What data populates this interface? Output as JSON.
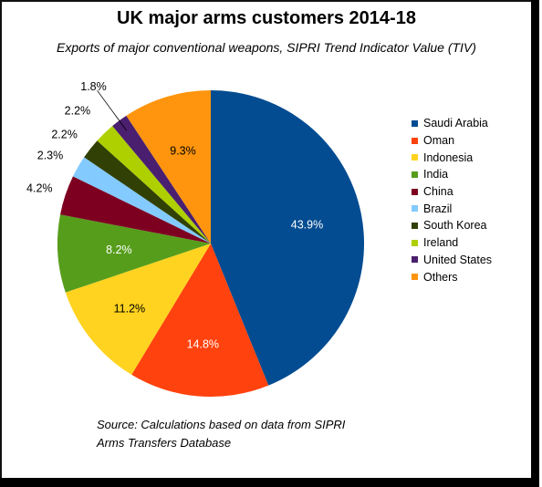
{
  "title": "UK major arms customers 2014-18",
  "subtitle": "Exports of major conventional weapons, SIPRI Trend Indicator Value (TIV)",
  "source_lines": [
    "Source: Calculations based on data from SIPRI",
    "Arms Transfers Database"
  ],
  "chart_data": {
    "type": "pie",
    "title": "UK major arms customers 2014-18",
    "legend_position": "right",
    "slices": [
      {
        "name": "Saudi Arabia",
        "value": 43.9,
        "label": "43.9%",
        "color": "#034c91"
      },
      {
        "name": "Oman",
        "value": 14.8,
        "label": "14.8%",
        "color": "#ff420e"
      },
      {
        "name": "Indonesia",
        "value": 11.2,
        "label": "11.2%",
        "color": "#ffd320"
      },
      {
        "name": "India",
        "value": 8.2,
        "label": "8.2%",
        "color": "#579d1c"
      },
      {
        "name": "China",
        "value": 4.2,
        "label": "4.2%",
        "color": "#7e0021"
      },
      {
        "name": "Brazil",
        "value": 2.3,
        "label": "2.3%",
        "color": "#83caff"
      },
      {
        "name": "South Korea",
        "value": 2.2,
        "label": "2.2%",
        "color": "#314004"
      },
      {
        "name": "Ireland",
        "value": 2.2,
        "label": "2.2%",
        "color": "#aecf00"
      },
      {
        "name": "United States",
        "value": 1.8,
        "label": "1.8%",
        "color": "#4b1f6f"
      },
      {
        "name": "Others",
        "value": 9.3,
        "label": "9.3%",
        "color": "#ff950e"
      }
    ]
  }
}
